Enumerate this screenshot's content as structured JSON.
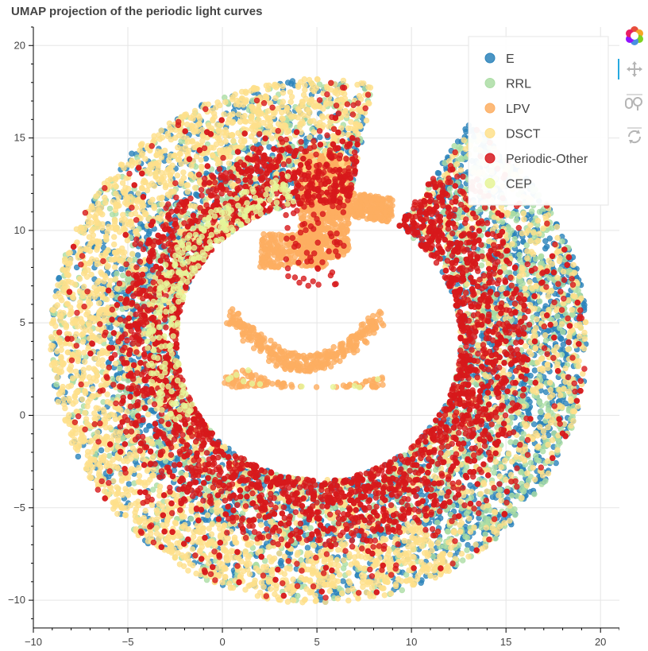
{
  "chart_data": {
    "type": "scatter",
    "title": "UMAP projection of the periodic light curves",
    "xlabel": "",
    "ylabel": "",
    "xlim": [
      -10,
      21
    ],
    "ylim": [
      -11.5,
      21
    ],
    "xticks": [
      -10,
      -5,
      0,
      5,
      10,
      15,
      20
    ],
    "yticks": [
      -10,
      -5,
      0,
      5,
      10,
      15,
      20
    ],
    "x_tick_labels": [
      "−10",
      "−5",
      "0",
      "5",
      "10",
      "15",
      "20"
    ],
    "y_tick_labels": [
      "−10",
      "−5",
      "0",
      "5",
      "10",
      "15",
      "20"
    ],
    "grid": true,
    "legend_position": "top-right",
    "series": [
      {
        "name": "E",
        "color": "#2b83ba"
      },
      {
        "name": "RRL",
        "color": "#abdda4"
      },
      {
        "name": "LPV",
        "color": "#fdae61"
      },
      {
        "name": "DSCT",
        "color": "#fee08b"
      },
      {
        "name": "Periodic-Other",
        "color": "#d7191c"
      },
      {
        "name": "CEP",
        "color": "#e6f598"
      }
    ],
    "regions": {
      "ring": {
        "center": [
          5.1,
          4.0
        ],
        "outer_radius": 14.2,
        "inner_radius": 7.5
      },
      "lpv_blob": {
        "center": [
          5.0,
          11.5
        ],
        "x_range": [
          1.5,
          9.0
        ],
        "y_range": [
          6.8,
          14.2
        ]
      },
      "lpv_arc": {
        "x_range": [
          0.0,
          8.5
        ],
        "y_range": [
          1.5,
          5.0
        ]
      }
    }
  },
  "toolbar": {
    "icons": [
      "bokeh-logo-icon",
      "pan-icon",
      "box-zoom-icon",
      "reset-icon"
    ]
  }
}
